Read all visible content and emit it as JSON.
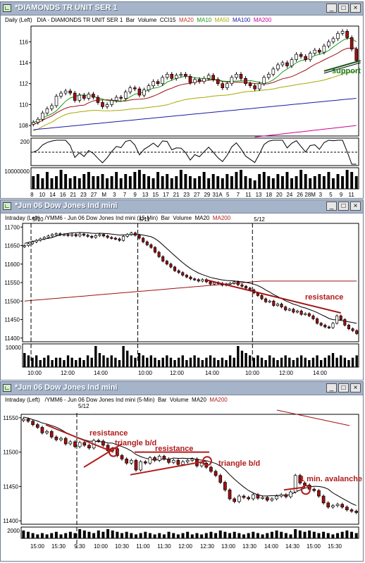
{
  "windows": [
    {
      "title": "*DIAMONDS TR UNIT SER 1",
      "header": {
        "period": "Daily",
        "axis_side": "(Left)",
        "symbol_desc": "DIA - DIAMONDS TR UNIT SER 1",
        "style": "Bar",
        "studies": [
          "Volume",
          "CCI15"
        ],
        "mas": [
          {
            "label": "MA20",
            "color": "#c0392b"
          },
          {
            "label": "MA10",
            "color": "#1a9a1a"
          },
          {
            "label": "MA50",
            "color": "#a8a800"
          },
          {
            "label": "MA100",
            "color": "#1a1aa8"
          },
          {
            "label": "MA200",
            "color": "#cc0099"
          }
        ]
      }
    },
    {
      "title": "*Jun 06  Dow Jones Ind mini",
      "header": {
        "period": "Intraday",
        "axis_side": "(Left)",
        "symbol_desc": "/YMM6 - Jun 06  Dow Jones Ind mini  (15-Min)",
        "style": "Bar",
        "studies": [
          "Volume"
        ],
        "mas": [
          {
            "label": "MA20",
            "color": "#000000"
          },
          {
            "label": "MA200",
            "color": "#b01c1c"
          }
        ]
      }
    },
    {
      "title": "*Jun 06  Dow Jones Ind mini",
      "header": {
        "period": "Intraday",
        "axis_side": "(Left)",
        "symbol_desc": "/YMM6 - Jun 06  Dow Jones Ind mini  (5-Min)",
        "style": "Bar",
        "studies": [
          "Volume"
        ],
        "mas": [
          {
            "label": "MA20",
            "color": "#000000"
          },
          {
            "label": "MA200",
            "color": "#b01c1c"
          }
        ]
      }
    }
  ],
  "window_buttons": {
    "minimize": "_",
    "maximize": "□",
    "close": "×"
  },
  "chart_data": [
    {
      "type": "candlestick",
      "title": "*DIAMONDS TR UNIT SER 1",
      "ylim": [
        107,
        117.5
      ],
      "yticks": [
        108,
        110,
        112,
        114,
        116
      ],
      "x_labels": [
        "8",
        "10",
        "14",
        "16",
        "21",
        "23",
        "27",
        "M",
        "3",
        "7",
        "9",
        "13",
        "15",
        "17",
        "21",
        "23",
        "27",
        "29",
        "31A",
        "5",
        "7",
        "11",
        "13",
        "18",
        "20",
        "24",
        "26",
        "28M",
        "3",
        "5",
        "9",
        "11"
      ],
      "close": [
        108.3,
        108.6,
        109.2,
        109.6,
        109.9,
        110.8,
        111.1,
        111.3,
        111.1,
        110.4,
        110.9,
        110.6,
        111.0,
        110.7,
        110.2,
        109.8,
        110.0,
        110.4,
        110.7,
        110.6,
        111.2,
        111.6,
        111.5,
        110.9,
        111.4,
        111.8,
        112.2,
        112.0,
        112.6,
        112.9,
        112.5,
        112.8,
        112.9,
        112.7,
        112.1,
        112.4,
        112.2,
        112.5,
        112.8,
        112.4,
        112.0,
        111.6,
        112.0,
        112.6,
        112.9,
        112.5,
        112.0,
        111.8,
        111.5,
        112.0,
        112.6,
        112.9,
        113.4,
        113.8,
        114.0,
        113.7,
        114.3,
        114.8,
        114.6,
        114.3,
        114.9,
        115.2,
        115.0,
        115.6,
        116.0,
        116.3,
        116.8,
        117.0,
        116.4,
        115.3,
        114.2
      ],
      "annotations": [
        {
          "text": "support",
          "color": "#1a7a1a"
        }
      ],
      "ma_series": [
        "MA10",
        "MA20",
        "MA50",
        "MA100",
        "MA200"
      ],
      "cci": {
        "ylabel": "200",
        "zero_line": "dashed"
      },
      "volume": {
        "ylabel": "10000000",
        "values": [
          6,
          7,
          5,
          8,
          5,
          6,
          9,
          7,
          5,
          6,
          5,
          7,
          8,
          6,
          6,
          7,
          5,
          6,
          8,
          5,
          7,
          6,
          8,
          9,
          7,
          6,
          5,
          8,
          6,
          7,
          5,
          6,
          9,
          7,
          6,
          5,
          6,
          8,
          5,
          7,
          6,
          5,
          7,
          6,
          8,
          9,
          6,
          5,
          4,
          7,
          8,
          6,
          5,
          7,
          6,
          8,
          5,
          6,
          9,
          7,
          5,
          6,
          7,
          6,
          8,
          5,
          7,
          6,
          9,
          8,
          6
        ]
      }
    },
    {
      "type": "candlestick",
      "title": "*Jun 06  Dow Jones Ind mini (15-Min)",
      "ylim": [
        11390,
        11710
      ],
      "yticks": [
        11400,
        11450,
        11500,
        11550,
        11600,
        11650,
        11700
      ],
      "session_labels": [
        "5/10",
        "5/11",
        "5/12"
      ],
      "x_labels": [
        "10:00",
        "12:00",
        "14:00",
        "10:00",
        "12:00",
        "14:00",
        "10:00",
        "12:00",
        "14:00"
      ],
      "close": [
        11650,
        11655,
        11660,
        11664,
        11668,
        11672,
        11676,
        11680,
        11682,
        11679,
        11680,
        11677,
        11680,
        11676,
        11681,
        11678,
        11675,
        11672,
        11677,
        11680,
        11676,
        11672,
        11670,
        11668,
        11664,
        11675,
        11680,
        11684,
        11678,
        11670,
        11660,
        11652,
        11645,
        11632,
        11620,
        11608,
        11600,
        11592,
        11582,
        11577,
        11570,
        11565,
        11560,
        11558,
        11554,
        11558,
        11552,
        11546,
        11550,
        11548,
        11543,
        11546,
        11548,
        11552,
        11544,
        11540,
        11535,
        11530,
        11522,
        11515,
        11506,
        11498,
        11500,
        11488,
        11492,
        11484,
        11476,
        11478,
        11470,
        11473,
        11464,
        11466,
        11460,
        11452,
        11440,
        11435,
        11430,
        11428,
        11440,
        11460,
        11450,
        11435,
        11425,
        11420,
        11412
      ],
      "annotations": [
        {
          "text": "resistance",
          "color": "#b01c1c"
        }
      ],
      "volume": {
        "ylabel": "10000",
        "values": [
          6,
          5,
          4,
          5,
          3,
          4,
          5,
          3,
          4,
          4,
          3,
          5,
          4,
          3,
          4,
          3,
          5,
          4,
          9,
          6,
          5,
          4,
          5,
          4,
          3,
          9,
          7,
          5,
          4,
          6,
          5,
          4,
          5,
          4,
          3,
          4,
          5,
          4,
          3,
          4,
          5,
          3,
          4,
          5,
          4,
          3,
          4,
          5,
          4,
          3,
          4,
          3,
          5,
          4,
          9,
          7,
          6,
          5,
          4,
          5,
          4,
          3,
          5,
          4,
          3,
          4,
          5,
          4,
          3,
          4,
          5,
          4,
          3,
          4,
          5,
          3,
          4,
          5,
          6,
          4,
          5,
          4,
          3,
          4,
          5
        ]
      }
    },
    {
      "type": "candlestick",
      "title": "*Jun 06  Dow Jones Ind mini (5-Min)",
      "ylim": [
        11395,
        11555
      ],
      "yticks": [
        11400,
        11450,
        11500,
        11550
      ],
      "session_labels": [
        "5/12"
      ],
      "x_labels": [
        "15:00",
        "15:30",
        "9:30",
        "10:00",
        "10:30",
        "11:00",
        "11:30",
        "12:00",
        "12:30",
        "13:00",
        "13:30",
        "14:00",
        "14:30",
        "15:00",
        "15:30"
      ],
      "close": [
        11548,
        11545,
        11540,
        11536,
        11528,
        11530,
        11522,
        11518,
        11520,
        11512,
        11515,
        11508,
        11514,
        11510,
        11506,
        11517,
        11516,
        11510,
        11502,
        11505,
        11495,
        11490,
        11484,
        11488,
        11474,
        11486,
        11484,
        11492,
        11488,
        11494,
        11490,
        11485,
        11488,
        11482,
        11486,
        11488,
        11490,
        11480,
        11484,
        11478,
        11472,
        11466,
        11456,
        11445,
        11432,
        11428,
        11436,
        11434,
        11432,
        11438,
        11433,
        11434,
        11430,
        11432,
        11436,
        11438,
        11435,
        11442,
        11466,
        11455,
        11452,
        11446,
        11444,
        11436,
        11426,
        11420,
        11422,
        11424,
        11420,
        11416,
        11414,
        11412
      ],
      "annotations": [
        {
          "text": "resistance",
          "color": "#b01c1c"
        },
        {
          "text": "triangle b/d",
          "color": "#b01c1c"
        },
        {
          "text": "resistance",
          "color": "#b01c1c"
        },
        {
          "text": "triangle b/d",
          "color": "#b01c1c"
        },
        {
          "text": "1 min. avalanche",
          "color": "#b01c1c"
        }
      ],
      "volume": {
        "ylabel": "2000",
        "values": [
          6,
          5,
          4,
          3,
          4,
          3,
          4,
          5,
          3,
          4,
          5,
          4,
          7,
          6,
          5,
          4,
          6,
          5,
          7,
          6,
          5,
          4,
          5,
          4,
          3,
          4,
          5,
          4,
          3,
          4,
          3,
          5,
          4,
          3,
          4,
          5,
          3,
          4,
          3,
          4,
          5,
          4,
          6,
          5,
          4,
          5,
          4,
          3,
          4,
          5,
          4,
          3,
          4,
          5,
          6,
          5,
          4,
          3,
          7,
          6,
          5,
          6,
          5,
          4,
          5,
          4,
          3,
          4,
          5,
          6,
          5,
          4
        ]
      }
    }
  ]
}
